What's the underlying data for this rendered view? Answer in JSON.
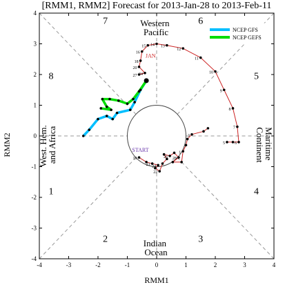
{
  "chart_data": {
    "type": "line",
    "title": "[RMM1, RMM2] Forecast for 2013-Jan-28 to 2013-Feb-11",
    "xlabel": "RMM1",
    "ylabel": "RMM2",
    "xlim": [
      -4,
      4
    ],
    "ylim": [
      -4,
      4
    ],
    "xticks": [
      "-4",
      "-3",
      "-2",
      "-1",
      "0",
      "1",
      "2",
      "3",
      "4"
    ],
    "yticks": [
      "-4",
      "-3",
      "-2",
      "-1",
      "0",
      "1",
      "2",
      "3",
      "4"
    ],
    "phases": [
      "1",
      "2",
      "3",
      "4",
      "5",
      "6",
      "7",
      "8"
    ],
    "regions": {
      "west_hem_africa": "West. Hem. and Africa",
      "western_pacific": "Western Pacific",
      "maritime_continent": "Maritime Continent",
      "indian_ocean": "Indian Ocean"
    },
    "annotations": {
      "start": "START",
      "jan": "JAN"
    },
    "legend": {
      "position": "top-right",
      "entries": [
        {
          "name": "NCEP GFS",
          "color": "#00bfff"
        },
        {
          "name": "NCEP GEFS",
          "color": "#00dd00"
        }
      ]
    },
    "colors": {
      "observed": "#cc2222",
      "start_label": "#6633aa",
      "jan_label": "#cc2222",
      "dashed": "#999999",
      "circle": "#444444",
      "gfs": "#00bfff",
      "gefs": "#00dd00"
    },
    "observed_early": {
      "points": [
        [
          -0.6,
          -0.7
        ],
        [
          -0.35,
          -0.85
        ],
        [
          -0.15,
          -0.9
        ],
        [
          0.05,
          -0.95
        ],
        [
          -0.05,
          -1.05
        ],
        [
          0.1,
          -1.15
        ],
        [
          0.2,
          -0.9
        ],
        [
          0.35,
          -0.75
        ],
        [
          0.25,
          -0.6
        ],
        [
          0.45,
          -0.65
        ],
        [
          0.6,
          -0.55
        ],
        [
          0.75,
          -0.7
        ],
        [
          0.55,
          -0.85
        ],
        [
          0.85,
          -0.85
        ],
        [
          0.9,
          -0.5
        ],
        [
          1.0,
          -0.3
        ],
        [
          1.05,
          -0.1
        ],
        [
          1.2,
          0.05
        ],
        [
          1.6,
          0.15
        ],
        [
          1.75,
          0.25
        ]
      ],
      "labels": [
        {
          "text": "19",
          "at": 0
        },
        {
          "text": "21",
          "at": 2
        },
        {
          "text": "24",
          "at": 3
        },
        {
          "text": "22",
          "at": 5
        },
        {
          "text": "26",
          "at": 9
        },
        {
          "text": "28",
          "at": 11
        },
        {
          "text": "1",
          "at": 14
        },
        {
          "text": "3",
          "at": 17
        }
      ]
    },
    "observed_late": {
      "points": [
        [
          2.4,
          -0.2
        ],
        [
          2.6,
          -0.2
        ],
        [
          2.8,
          -0.2
        ],
        [
          2.75,
          0.3
        ],
        [
          2.6,
          0.9
        ],
        [
          2.3,
          1.5
        ],
        [
          2.0,
          2.1
        ],
        [
          1.5,
          2.55
        ],
        [
          0.9,
          2.85
        ],
        [
          0.35,
          2.95
        ],
        [
          0.0,
          3.0
        ],
        [
          -0.3,
          2.95
        ],
        [
          -0.5,
          2.75
        ],
        [
          -0.55,
          2.45
        ],
        [
          -0.6,
          2.25
        ],
        [
          -0.4,
          2.05
        ],
        [
          -0.6,
          2.0
        ]
      ],
      "labels": [
        {
          "text": "5",
          "at": 0
        },
        {
          "text": "6",
          "at": 2
        },
        {
          "text": "7",
          "at": 3
        },
        {
          "text": "8",
          "at": 4
        },
        {
          "text": "9",
          "at": 5
        },
        {
          "text": "10",
          "at": 6
        },
        {
          "text": "11",
          "at": 7
        },
        {
          "text": "12",
          "at": 8
        },
        {
          "text": "13",
          "at": 9
        },
        {
          "text": "14",
          "at": 10
        },
        {
          "text": "15",
          "at": 11
        },
        {
          "text": "16",
          "at": 12
        },
        {
          "text": "18",
          "at": 13
        },
        {
          "text": "20",
          "at": 14
        },
        {
          "text": "24",
          "at": 15
        },
        {
          "text": "27",
          "at": 16
        }
      ]
    },
    "series": [
      {
        "name": "NCEP GFS",
        "values": [
          [
            -0.35,
            1.8
          ],
          [
            -0.55,
            1.5
          ],
          [
            -0.75,
            1.1
          ],
          [
            -0.9,
            0.85
          ],
          [
            -1.35,
            0.75
          ],
          [
            -1.5,
            0.55
          ],
          [
            -1.7,
            0.65
          ],
          [
            -2.0,
            0.55
          ],
          [
            -2.3,
            0.2
          ],
          [
            -2.5,
            0.0
          ]
        ]
      },
      {
        "name": "NCEP GEFS",
        "values": [
          [
            -0.35,
            1.8
          ],
          [
            -0.6,
            1.45
          ],
          [
            -0.8,
            1.2
          ],
          [
            -1.0,
            1.05
          ],
          [
            -1.3,
            1.15
          ],
          [
            -1.6,
            1.2
          ],
          [
            -1.85,
            1.2
          ],
          [
            -1.7,
            0.95
          ],
          [
            -1.55,
            0.85
          ],
          [
            -1.9,
            0.9
          ]
        ]
      }
    ]
  }
}
